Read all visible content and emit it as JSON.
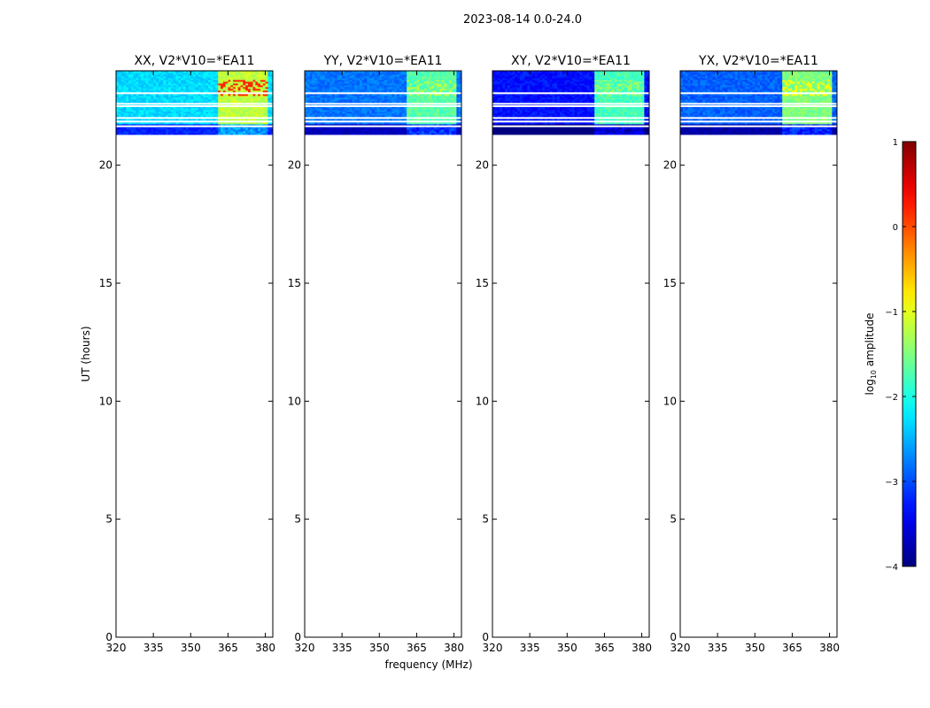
{
  "chart_data": {
    "type": "heatmap",
    "title": "2023-08-14 0.0-24.0",
    "xlabel": "frequency (MHz)",
    "ylabel": "UT (hours)",
    "xlim": [
      320,
      383
    ],
    "ylim": [
      0,
      24
    ],
    "xticks": [
      320,
      335,
      350,
      365,
      380
    ],
    "yticks": [
      0,
      5,
      10,
      15,
      20
    ],
    "data_ut_range": [
      21.3,
      24.0
    ],
    "gap_rows_ut": [
      23.05,
      22.6,
      22.5,
      22.0,
      21.85,
      21.65
    ],
    "rfi_bands_mhz": [
      [
        361.5,
        365.5
      ],
      [
        366.5,
        370.5
      ],
      [
        371.5,
        375.5
      ],
      [
        376.5,
        380.5
      ]
    ],
    "panels": [
      {
        "title": "XX, V2*V10=*EA11",
        "base_level": -2.3,
        "band_level": -1.2,
        "hot_level": 0.2
      },
      {
        "title": "YY, V2*V10=*EA11",
        "base_level": -2.8,
        "band_level": -1.7,
        "hot_level": -1.2
      },
      {
        "title": "XY, V2*V10=*EA11",
        "base_level": -3.3,
        "band_level": -1.8,
        "hot_level": -1.4
      },
      {
        "title": "YX, V2*V10=*EA11",
        "base_level": -2.9,
        "band_level": -1.5,
        "hot_level": -0.9
      }
    ],
    "colorbar": {
      "label_prefix": "log",
      "label_sub": "10",
      "label_suffix": " amplitude",
      "range": [
        -4,
        1
      ],
      "ticks": [
        "1",
        "0",
        "−1",
        "−2",
        "−3",
        "−4"
      ],
      "tick_values": [
        1,
        0,
        -1,
        -2,
        -3,
        -4
      ],
      "colormap": "jet"
    }
  }
}
